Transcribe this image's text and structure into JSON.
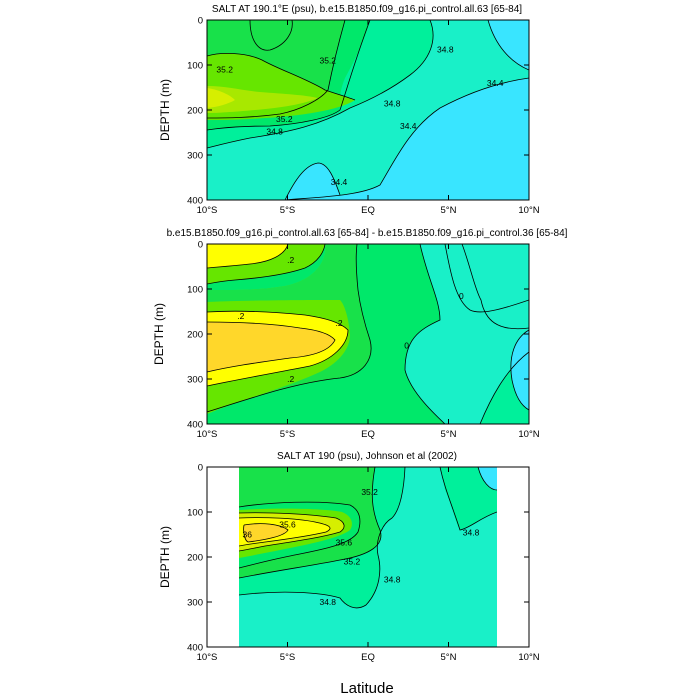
{
  "chart_data": [
    {
      "type": "contour",
      "title": "SALT AT 190.1°E (psu), b.e15.B1850.f09_g16.pi_control.all.63 [65-84]",
      "xlabel": "",
      "ylabel": "DEPTH (m)",
      "xlim": [
        -10,
        10
      ],
      "ylim": [
        400,
        0
      ],
      "x_ticks": [
        "10°S",
        "5°S",
        "EQ",
        "5°N",
        "10°N"
      ],
      "y_ticks": [
        "0",
        "100",
        "200",
        "300",
        "400"
      ],
      "contour_labels": [
        {
          "text": "35.2",
          "x": -8.9,
          "y": 110
        },
        {
          "text": "35.2",
          "x": -2.5,
          "y": 90
        },
        {
          "text": "35.2",
          "x": -5.2,
          "y": 220
        },
        {
          "text": "34.8",
          "x": -5.8,
          "y": 248
        },
        {
          "text": "34.8",
          "x": 1.5,
          "y": 185
        },
        {
          "text": "34.8",
          "x": 4.8,
          "y": 65
        },
        {
          "text": "34.4",
          "x": 7.9,
          "y": 140
        },
        {
          "text": "34.4",
          "x": 2.5,
          "y": 235
        },
        {
          "text": "34.4",
          "x": -1.8,
          "y": 360
        }
      ]
    },
    {
      "type": "contour",
      "title": "b.e15.B1850.f09_g16.pi_control.all.63 [65-84] - b.e15.B1850.f09_g16.pi_control.36 [65-84]",
      "xlabel": "",
      "ylabel": "DEPTH (m)",
      "xlim": [
        -10,
        10
      ],
      "ylim": [
        400,
        0
      ],
      "x_ticks": [
        "10°S",
        "5°S",
        "EQ",
        "5°N",
        "10°N"
      ],
      "y_ticks": [
        "0",
        "100",
        "200",
        "300",
        "400"
      ],
      "contour_labels": [
        {
          "text": ".2",
          "x": -4.8,
          "y": 35
        },
        {
          "text": ".2",
          "x": -7.9,
          "y": 160
        },
        {
          "text": ".2",
          "x": -1.8,
          "y": 175
        },
        {
          "text": ".2",
          "x": -4.8,
          "y": 300
        },
        {
          "text": "0",
          "x": 5.8,
          "y": 115
        },
        {
          "text": "0",
          "x": 2.4,
          "y": 225
        }
      ]
    },
    {
      "type": "contour",
      "title": "SALT AT 190 (psu), Johnson et al (2002)",
      "xlabel": "Latitude",
      "ylabel": "DEPTH (m)",
      "xlim": [
        -10,
        10
      ],
      "ylim": [
        400,
        0
      ],
      "x_ticks": [
        "10°S",
        "5°S",
        "EQ",
        "5°N",
        "10°N"
      ],
      "y_ticks": [
        "0",
        "100",
        "200",
        "300",
        "400"
      ],
      "contour_labels": [
        {
          "text": "35.2",
          "x": 0.1,
          "y": 55
        },
        {
          "text": "35.6",
          "x": -5.0,
          "y": 128
        },
        {
          "text": "36",
          "x": -7.5,
          "y": 150
        },
        {
          "text": "35.6",
          "x": -1.5,
          "y": 168
        },
        {
          "text": "35.2",
          "x": -1.0,
          "y": 210
        },
        {
          "text": "34.8",
          "x": 6.4,
          "y": 145
        },
        {
          "text": "34.8",
          "x": 1.5,
          "y": 250
        },
        {
          "text": "34.8",
          "x": -2.5,
          "y": 300
        }
      ]
    }
  ]
}
